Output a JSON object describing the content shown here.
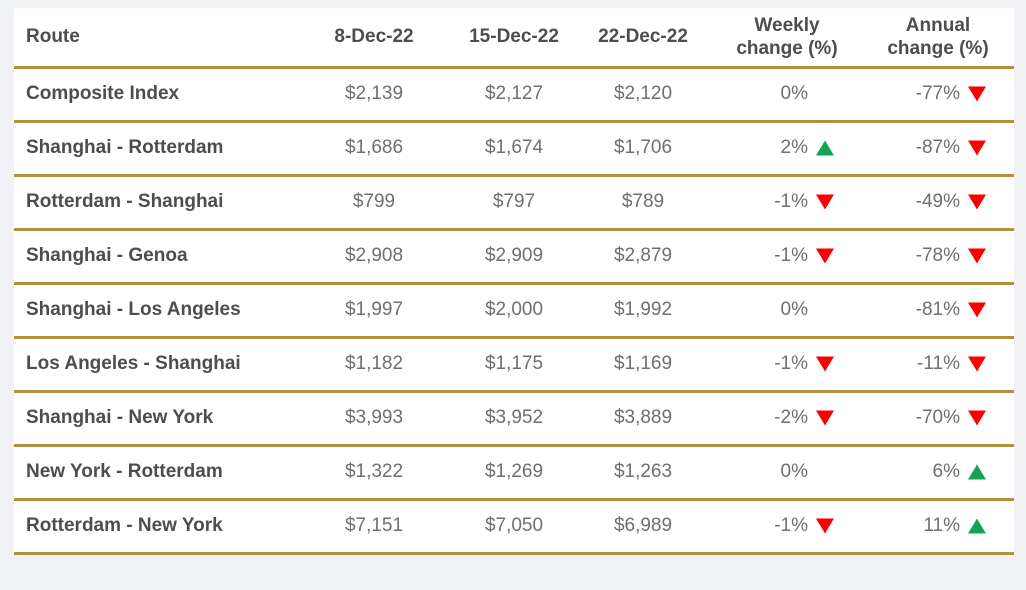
{
  "colors": {
    "page_background": "#f1f2f6",
    "card_background": "#ffffff",
    "divider": "#b2903e",
    "header_text": "#4d4d4d",
    "value_text": "#6f6f6f",
    "up": "#14a356",
    "down": "#fb0000"
  },
  "chart_data": {
    "type": "table",
    "columns": [
      "Route",
      "8-Dec-22",
      "15-Dec-22",
      "22-Dec-22",
      "Weekly change (%)",
      "Annual change (%)"
    ],
    "rows": [
      {
        "route": "Composite Index",
        "rate_8dec": "$2,139",
        "rate_15dec": "$2,127",
        "rate_22dec": "$2,120",
        "weekly_change": "0%",
        "weekly_direction": "flat",
        "annual_change": "-77%",
        "annual_direction": "down"
      },
      {
        "route": "Shanghai - Rotterdam",
        "rate_8dec": "$1,686",
        "rate_15dec": "$1,674",
        "rate_22dec": "$1,706",
        "weekly_change": "2%",
        "weekly_direction": "up",
        "annual_change": "-87%",
        "annual_direction": "down"
      },
      {
        "route": "Rotterdam - Shanghai",
        "rate_8dec": "$799",
        "rate_15dec": "$797",
        "rate_22dec": "$789",
        "weekly_change": "-1%",
        "weekly_direction": "down",
        "annual_change": "-49%",
        "annual_direction": "down"
      },
      {
        "route": "Shanghai - Genoa",
        "rate_8dec": "$2,908",
        "rate_15dec": "$2,909",
        "rate_22dec": "$2,879",
        "weekly_change": "-1%",
        "weekly_direction": "down",
        "annual_change": "-78%",
        "annual_direction": "down"
      },
      {
        "route": "Shanghai - Los Angeles",
        "rate_8dec": "$1,997",
        "rate_15dec": "$2,000",
        "rate_22dec": "$1,992",
        "weekly_change": "0%",
        "weekly_direction": "flat",
        "annual_change": "-81%",
        "annual_direction": "down"
      },
      {
        "route": "Los Angeles - Shanghai",
        "rate_8dec": "$1,182",
        "rate_15dec": "$1,175",
        "rate_22dec": "$1,169",
        "weekly_change": "-1%",
        "weekly_direction": "down",
        "annual_change": "-11%",
        "annual_direction": "down"
      },
      {
        "route": "Shanghai - New York",
        "rate_8dec": "$3,993",
        "rate_15dec": "$3,952",
        "rate_22dec": "$3,889",
        "weekly_change": "-2%",
        "weekly_direction": "down",
        "annual_change": "-70%",
        "annual_direction": "down"
      },
      {
        "route": "New York - Rotterdam",
        "rate_8dec": "$1,322",
        "rate_15dec": "$1,269",
        "rate_22dec": "$1,263",
        "weekly_change": "0%",
        "weekly_direction": "flat",
        "annual_change": "6%",
        "annual_direction": "up"
      },
      {
        "route": "Rotterdam - New York",
        "rate_8dec": "$7,151",
        "rate_15dec": "$7,050",
        "rate_22dec": "$6,989",
        "weekly_change": "-1%",
        "weekly_direction": "down",
        "annual_change": "11%",
        "annual_direction": "up"
      }
    ]
  }
}
